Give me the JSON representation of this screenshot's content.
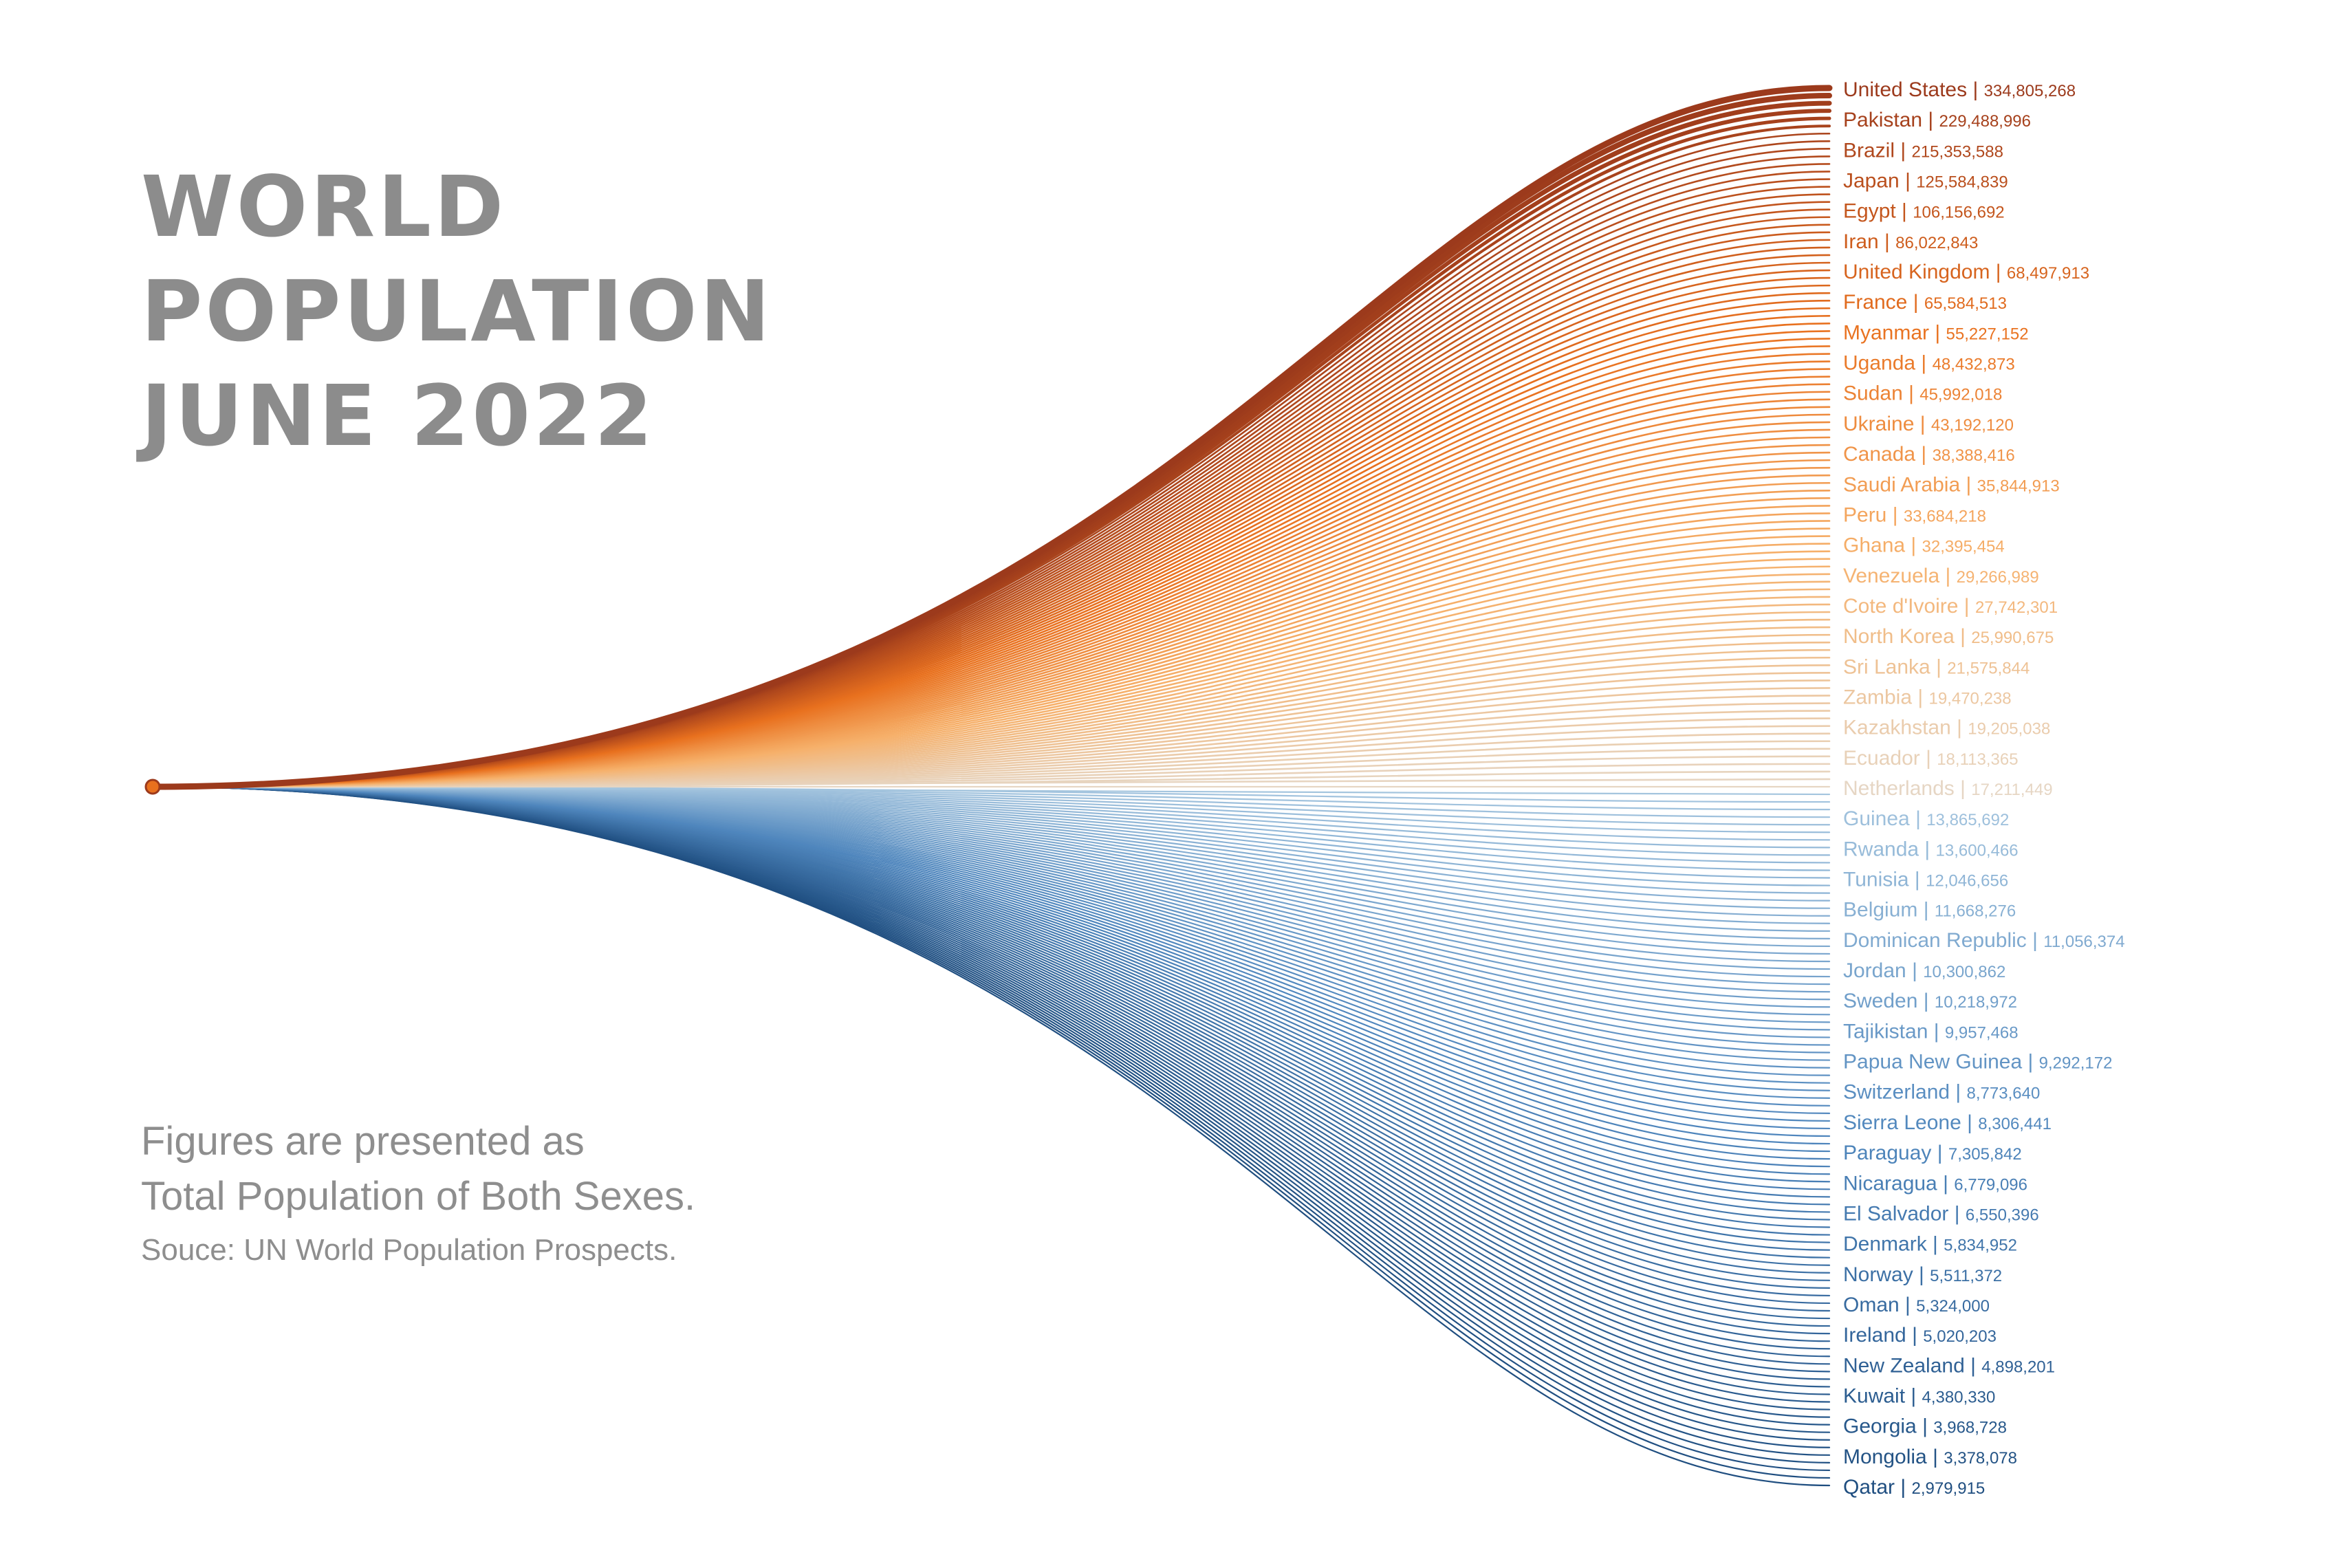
{
  "title": [
    "WORLD",
    "POPULATION",
    "JUNE 2022"
  ],
  "notes": {
    "line1": "Figures are presented as",
    "line2": "Total Population of Both Sexes.",
    "source": "Souce: UN World Population Prospects."
  },
  "colors": {
    "top_dark": "#9c3a1c",
    "orange": "#e8701e",
    "light_orange": "#f6b06a",
    "pale": "#e6d6c4",
    "light_blue": "#a6c6df",
    "mid_blue": "#4f86bd",
    "dark_blue": "#1f4e80"
  },
  "chart_data": {
    "type": "line",
    "description_free": true,
    "labeled_countries": [
      {
        "name": "United States",
        "value_text": "334,805,268"
      },
      {
        "name": "Pakistan",
        "value_text": "229,488,996"
      },
      {
        "name": "Brazil",
        "value_text": "215,353,588"
      },
      {
        "name": "Japan",
        "value_text": "125,584,839"
      },
      {
        "name": "Egypt",
        "value_text": "106,156,692"
      },
      {
        "name": "Iran",
        "value_text": "86,022,843"
      },
      {
        "name": "United Kingdom",
        "value_text": "68,497,913"
      },
      {
        "name": "France",
        "value_text": "65,584,513"
      },
      {
        "name": "Myanmar",
        "value_text": "55,227,152"
      },
      {
        "name": "Uganda",
        "value_text": "48,432,873"
      },
      {
        "name": "Sudan",
        "value_text": "45,992,018"
      },
      {
        "name": "Ukraine",
        "value_text": "43,192,120"
      },
      {
        "name": "Canada",
        "value_text": "38,388,416"
      },
      {
        "name": "Saudi Arabia",
        "value_text": "35,844,913"
      },
      {
        "name": "Peru",
        "value_text": "33,684,218"
      },
      {
        "name": "Ghana",
        "value_text": "32,395,454"
      },
      {
        "name": "Venezuela",
        "value_text": "29,266,989"
      },
      {
        "name": "Cote d'Ivoire",
        "value_text": "27,742,301"
      },
      {
        "name": "North Korea",
        "value_text": "25,990,675"
      },
      {
        "name": "Sri Lanka",
        "value_text": "21,575,844"
      },
      {
        "name": "Zambia",
        "value_text": "19,470,238"
      },
      {
        "name": "Kazakhstan",
        "value_text": "19,205,038"
      },
      {
        "name": "Ecuador",
        "value_text": "18,113,365"
      },
      {
        "name": "Netherlands",
        "value_text": "17,211,449"
      },
      {
        "name": "Guinea",
        "value_text": "13,865,692"
      },
      {
        "name": "Rwanda",
        "value_text": "13,600,466"
      },
      {
        "name": "Tunisia",
        "value_text": "12,046,656"
      },
      {
        "name": "Belgium",
        "value_text": "11,668,276"
      },
      {
        "name": "Dominican Republic",
        "value_text": "11,056,374"
      },
      {
        "name": "Jordan",
        "value_text": "10,300,862"
      },
      {
        "name": "Sweden",
        "value_text": "10,218,972"
      },
      {
        "name": "Tajikistan",
        "value_text": "9,957,468"
      },
      {
        "name": "Papua New Guinea",
        "value_text": "9,292,172"
      },
      {
        "name": "Switzerland",
        "value_text": "8,773,640"
      },
      {
        "name": "Sierra Leone",
        "value_text": "8,306,441"
      },
      {
        "name": "Paraguay",
        "value_text": "7,305,842"
      },
      {
        "name": "Nicaragua",
        "value_text": "6,779,096"
      },
      {
        "name": "El Salvador",
        "value_text": "6,550,396"
      },
      {
        "name": "Denmark",
        "value_text": "5,834,952"
      },
      {
        "name": "Norway",
        "value_text": "5,511,372"
      },
      {
        "name": "Oman",
        "value_text": "5,324,000"
      },
      {
        "name": "Ireland",
        "value_text": "5,020,203"
      },
      {
        "name": "New Zealand",
        "value_text": "4,898,201"
      },
      {
        "name": "Kuwait",
        "value_text": "4,380,330"
      },
      {
        "name": "Georgia",
        "value_text": "3,968,728"
      },
      {
        "name": "Mongolia",
        "value_text": "3,378,078"
      },
      {
        "name": "Qatar",
        "value_text": "2,979,915"
      }
    ],
    "unlabeled_lines_between_labels": 3
  }
}
